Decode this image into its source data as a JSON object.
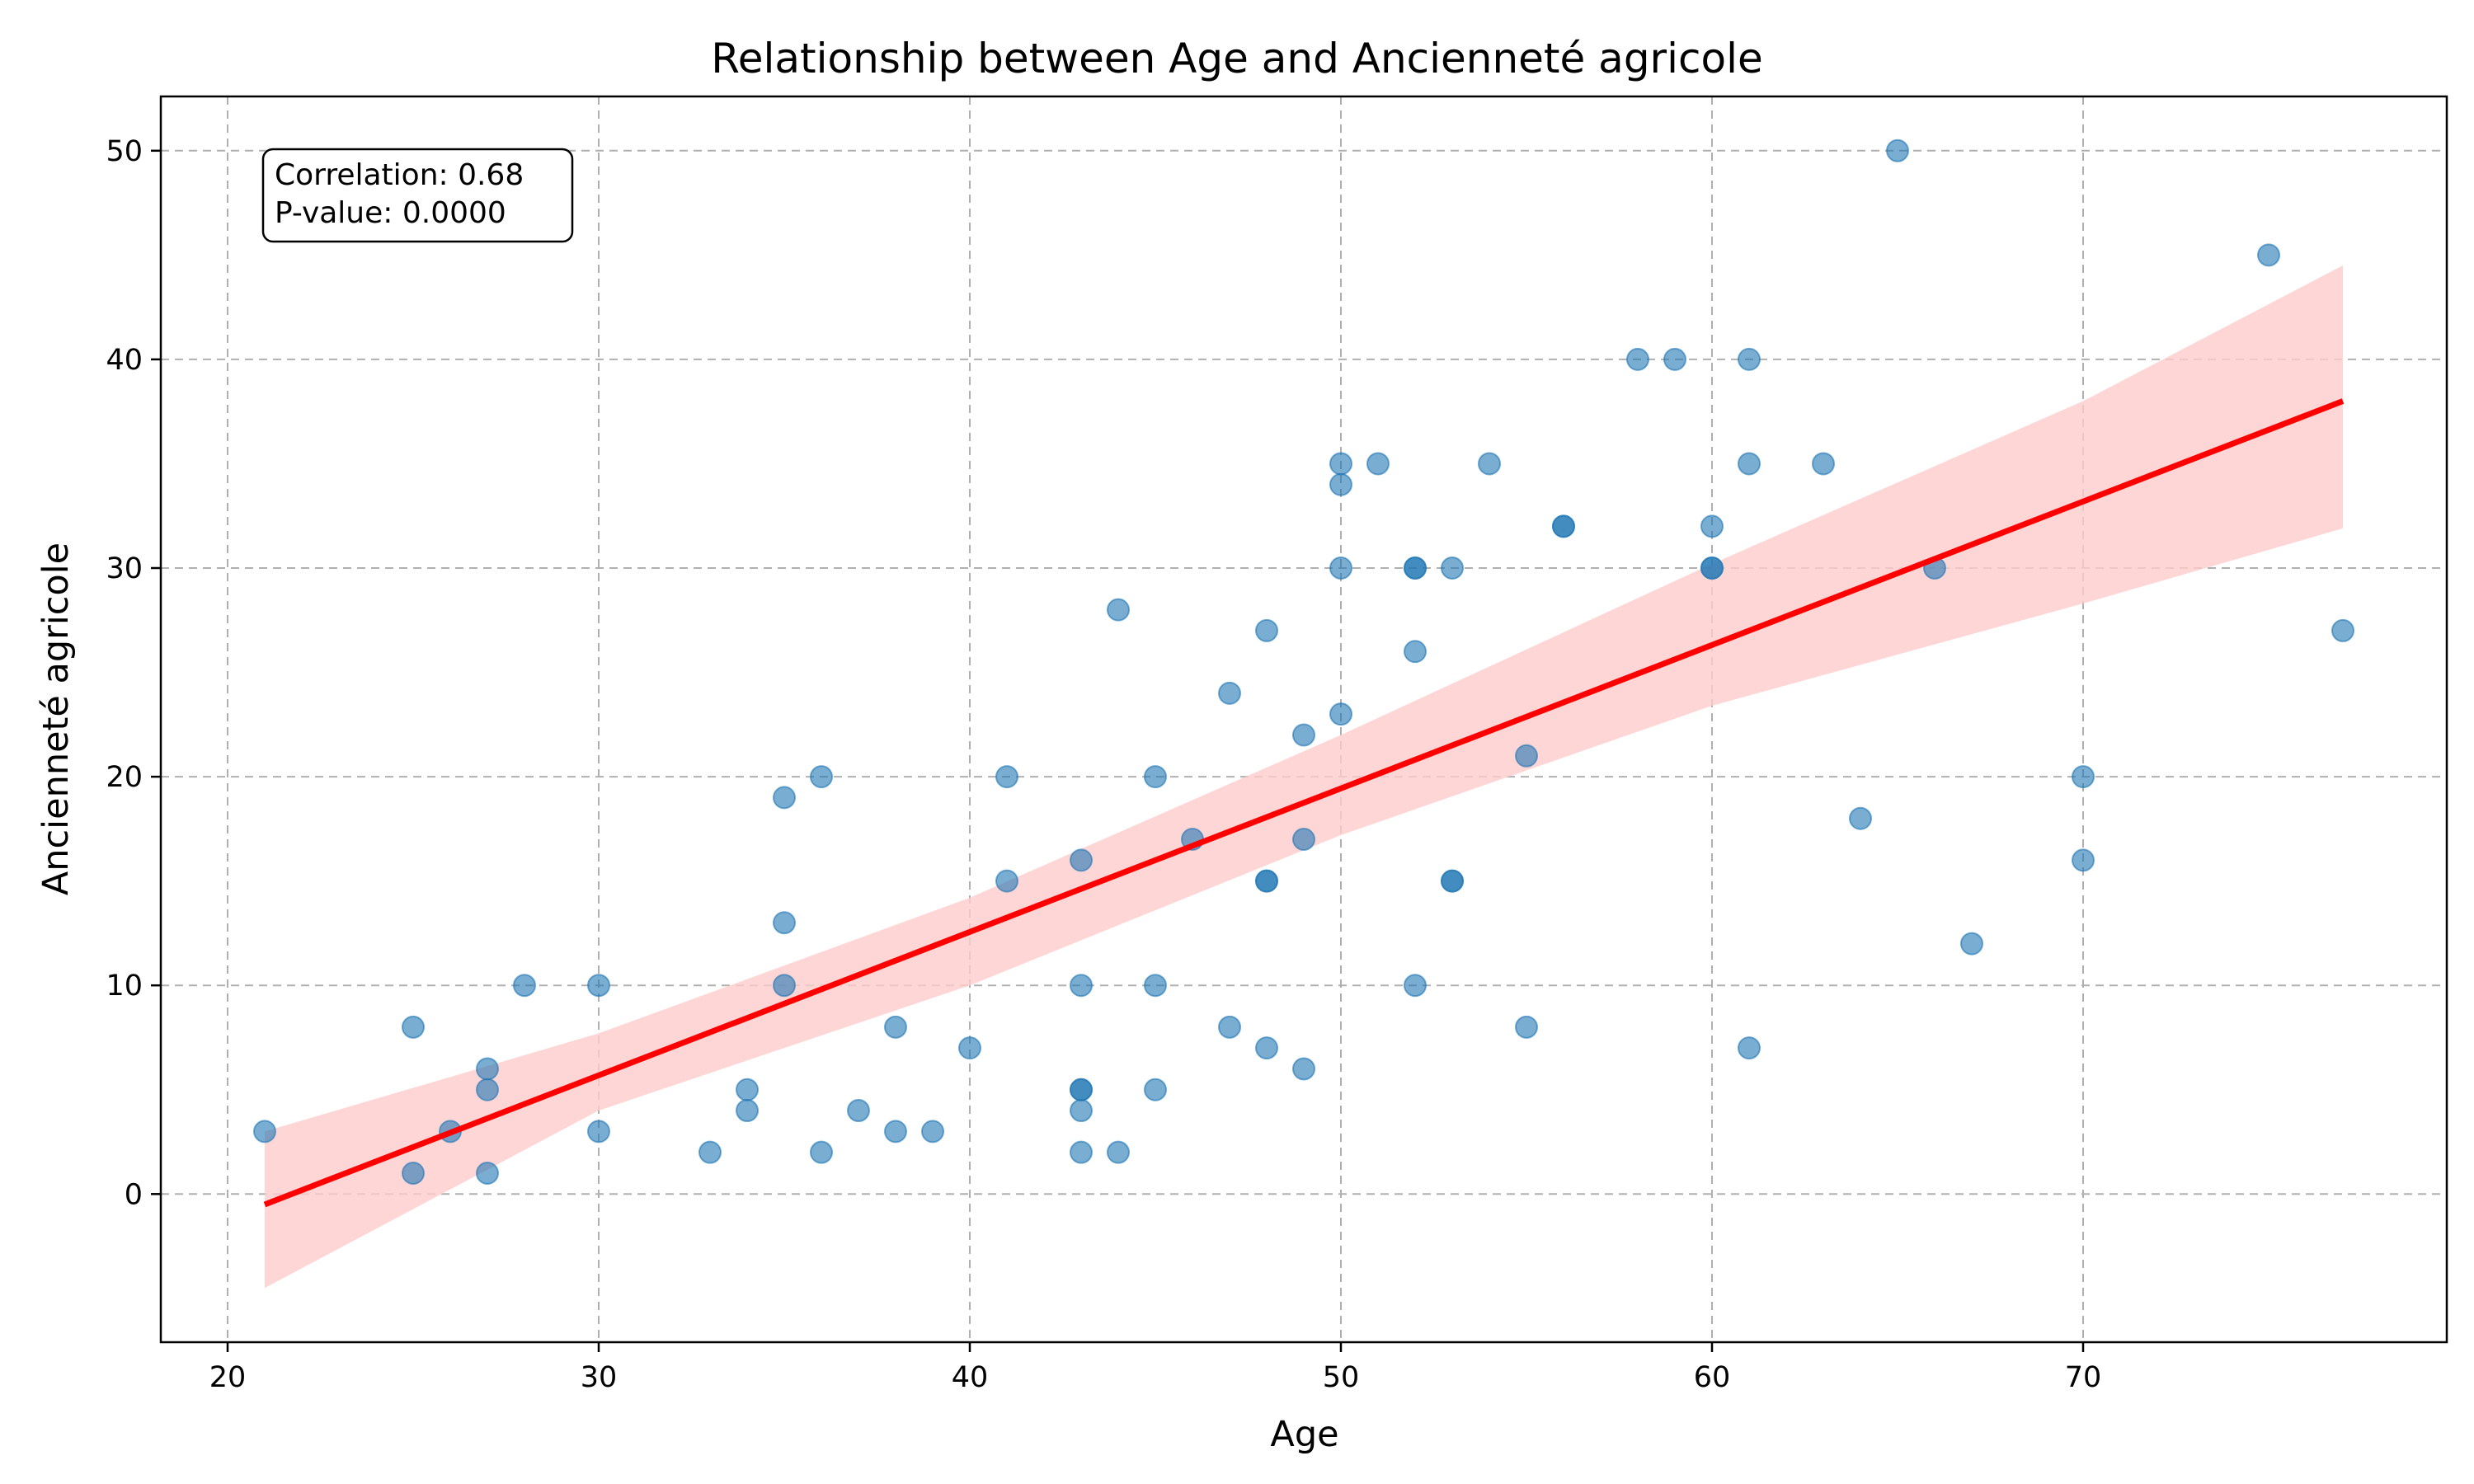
{
  "chart_data": {
    "type": "scatter",
    "title": "Relationship between Age and Ancienneté agricole",
    "xlabel": "Age",
    "ylabel": "Ancienneté agricole",
    "xlim": [
      18.2,
      79.8
    ],
    "ylim": [
      -7.1,
      52.6
    ],
    "xticks": [
      20,
      30,
      40,
      50,
      60,
      70
    ],
    "yticks": [
      0,
      10,
      20,
      30,
      40,
      50
    ],
    "grid": true,
    "annotation": {
      "line1": "Correlation: 0.68",
      "line2": "P-value: 0.0000"
    },
    "colors": {
      "points": "#1f77b4",
      "regression": "#ff0000",
      "ci_band": "#ffcccc"
    },
    "points": [
      [
        21,
        3
      ],
      [
        25,
        8
      ],
      [
        25,
        1
      ],
      [
        26,
        3
      ],
      [
        27,
        6
      ],
      [
        27,
        5
      ],
      [
        27,
        1
      ],
      [
        28,
        10
      ],
      [
        30,
        10
      ],
      [
        30,
        3
      ],
      [
        33,
        2
      ],
      [
        34,
        5
      ],
      [
        34,
        4
      ],
      [
        35,
        19
      ],
      [
        35,
        13
      ],
      [
        35,
        10
      ],
      [
        36,
        20
      ],
      [
        36,
        2
      ],
      [
        37,
        4
      ],
      [
        38,
        8
      ],
      [
        38,
        3
      ],
      [
        39,
        3
      ],
      [
        40,
        7
      ],
      [
        41,
        20
      ],
      [
        41,
        15
      ],
      [
        43,
        16
      ],
      [
        43,
        10
      ],
      [
        43,
        5
      ],
      [
        43,
        5
      ],
      [
        43,
        4
      ],
      [
        43,
        2
      ],
      [
        44,
        28
      ],
      [
        44,
        2
      ],
      [
        45,
        20
      ],
      [
        45,
        10
      ],
      [
        45,
        5
      ],
      [
        46,
        17
      ],
      [
        47,
        24
      ],
      [
        47,
        8
      ],
      [
        48,
        27
      ],
      [
        48,
        15
      ],
      [
        48,
        15
      ],
      [
        48,
        7
      ],
      [
        49,
        22
      ],
      [
        49,
        17
      ],
      [
        49,
        6
      ],
      [
        50,
        35
      ],
      [
        50,
        34
      ],
      [
        50,
        30
      ],
      [
        50,
        23
      ],
      [
        51,
        35
      ],
      [
        52,
        30
      ],
      [
        52,
        30
      ],
      [
        52,
        26
      ],
      [
        52,
        10
      ],
      [
        53,
        30
      ],
      [
        53,
        15
      ],
      [
        53,
        15
      ],
      [
        54,
        35
      ],
      [
        55,
        21
      ],
      [
        55,
        8
      ],
      [
        56,
        32
      ],
      [
        56,
        32
      ],
      [
        58,
        40
      ],
      [
        59,
        40
      ],
      [
        60,
        32
      ],
      [
        60,
        30
      ],
      [
        60,
        30
      ],
      [
        61,
        40
      ],
      [
        61,
        35
      ],
      [
        61,
        7
      ],
      [
        63,
        35
      ],
      [
        64,
        18
      ],
      [
        65,
        50
      ],
      [
        66,
        30
      ],
      [
        67,
        12
      ],
      [
        70,
        20
      ],
      [
        70,
        16
      ],
      [
        75,
        45
      ],
      [
        77,
        27
      ]
    ],
    "regression": {
      "x": [
        21,
        77
      ],
      "y": [
        -0.5,
        38
      ]
    },
    "ci_band": {
      "x": [
        21,
        30,
        40,
        50,
        60,
        70,
        77
      ],
      "lower": [
        -4.5,
        4.0,
        10.0,
        17.2,
        23.4,
        28.3,
        31.9
      ],
      "upper": [
        3.0,
        7.7,
        14.2,
        22.0,
        30.2,
        38.0,
        44.5
      ]
    }
  }
}
